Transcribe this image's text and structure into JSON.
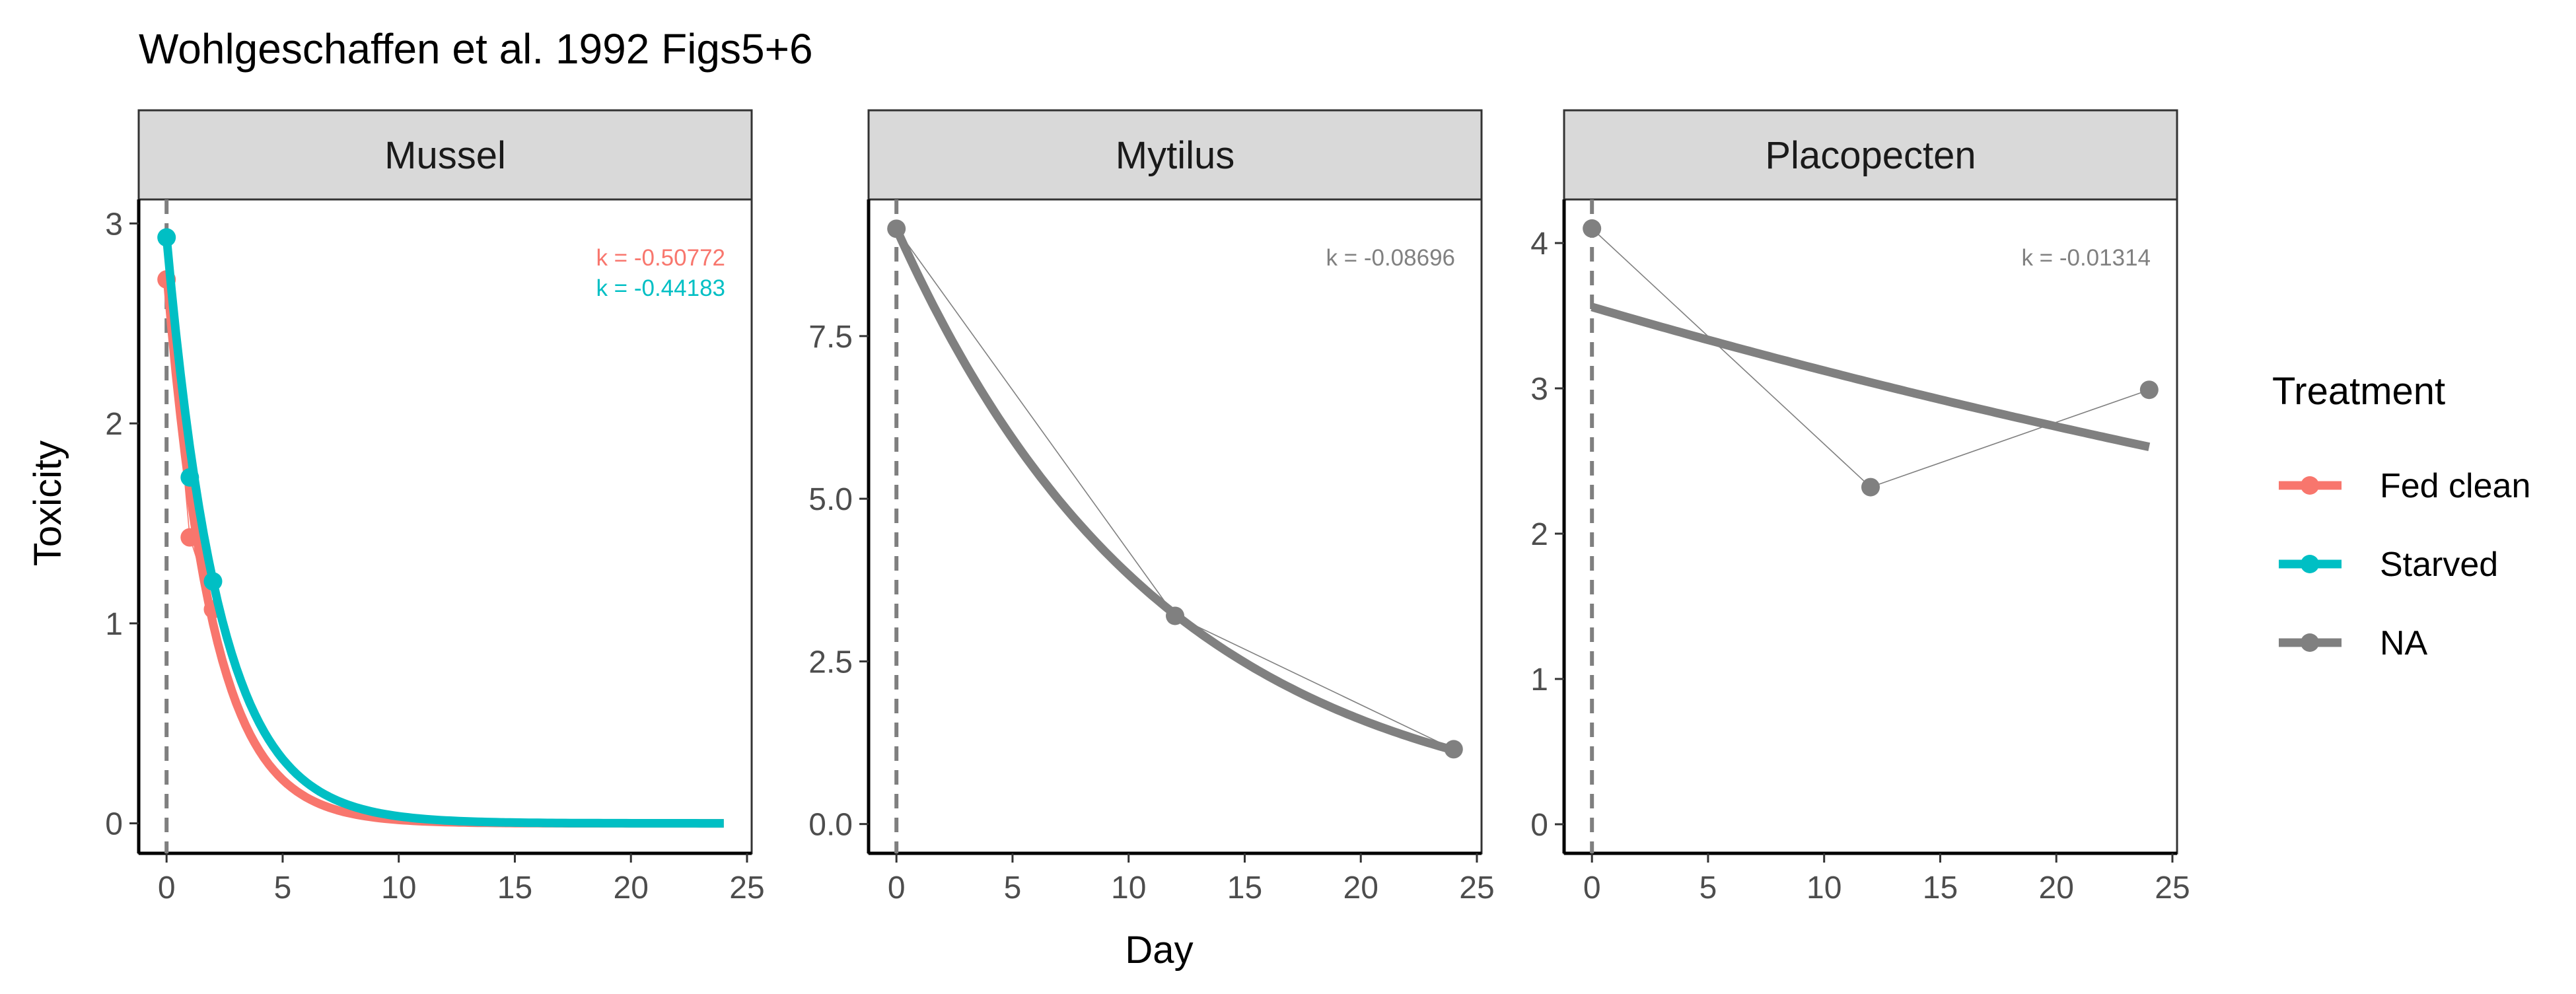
{
  "figure": {
    "title": "Wohlgeschaffen et al. 1992  Figs5+6",
    "xlabel": "Day",
    "ylabel": "Toxicity"
  },
  "legend": {
    "title": "Treatment",
    "items": [
      {
        "label": "Fed clean",
        "color": "#F8766D"
      },
      {
        "label": "Starved",
        "color": "#00BFC4"
      },
      {
        "label": "NA",
        "color": "#808080"
      }
    ]
  },
  "chart_data": [
    {
      "type": "line",
      "panel": "Mussel",
      "xlim": [
        -1.2,
        25.2
      ],
      "ylim": [
        -0.15,
        3.12
      ],
      "x_ticks": [
        0,
        5,
        10,
        15,
        20,
        25
      ],
      "y_ticks": [
        0,
        1,
        2,
        3
      ],
      "y_tick_labels": [
        "0",
        "1",
        "2",
        "3"
      ],
      "series": [
        {
          "name": "Fed clean",
          "color": "#F8766D",
          "x": [
            0,
            1,
            2
          ],
          "y": [
            2.72,
            1.43,
            1.07
          ],
          "fit_k": -0.50772,
          "fit_y0": 2.76,
          "k_label": "k = -0.50772"
        },
        {
          "name": "Starved",
          "color": "#00BFC4",
          "x": [
            0,
            1,
            2
          ],
          "y": [
            2.93,
            1.73,
            1.21
          ],
          "fit_k": -0.44183,
          "fit_y0": 2.93,
          "k_label": "k = -0.44183"
        }
      ],
      "fit_x_range": [
        0,
        24
      ]
    },
    {
      "type": "line",
      "panel": "Mytilus",
      "xlim": [
        -1.2,
        25.2
      ],
      "ylim": [
        -0.45,
        9.6
      ],
      "x_ticks": [
        0,
        5,
        10,
        15,
        20,
        25
      ],
      "y_ticks": [
        0,
        2.5,
        5,
        7.5
      ],
      "y_tick_labels": [
        "0.0",
        "2.5",
        "5.0",
        "7.5"
      ],
      "series": [
        {
          "name": "NA",
          "color": "#808080",
          "x": [
            0,
            12,
            24
          ],
          "y": [
            9.15,
            3.2,
            1.15
          ],
          "fit_k": -0.08696,
          "fit_y0": 9.15,
          "k_label": "k = -0.08696"
        }
      ],
      "fit_x_range": [
        0,
        24
      ]
    },
    {
      "type": "line",
      "panel": "Placopecten",
      "xlim": [
        -1.2,
        25.2
      ],
      "ylim": [
        -0.2,
        4.3
      ],
      "x_ticks": [
        0,
        5,
        10,
        15,
        20,
        25
      ],
      "y_ticks": [
        0,
        1,
        2,
        3,
        4
      ],
      "y_tick_labels": [
        "0",
        "1",
        "2",
        "3",
        "4"
      ],
      "series": [
        {
          "name": "NA",
          "color": "#808080",
          "x": [
            0,
            12,
            24
          ],
          "y": [
            4.1,
            2.32,
            2.99
          ],
          "fit_k": -0.01314,
          "fit_y0": 3.56,
          "k_label": "k = -0.01314"
        }
      ],
      "fit_x_range": [
        0,
        24
      ]
    }
  ]
}
